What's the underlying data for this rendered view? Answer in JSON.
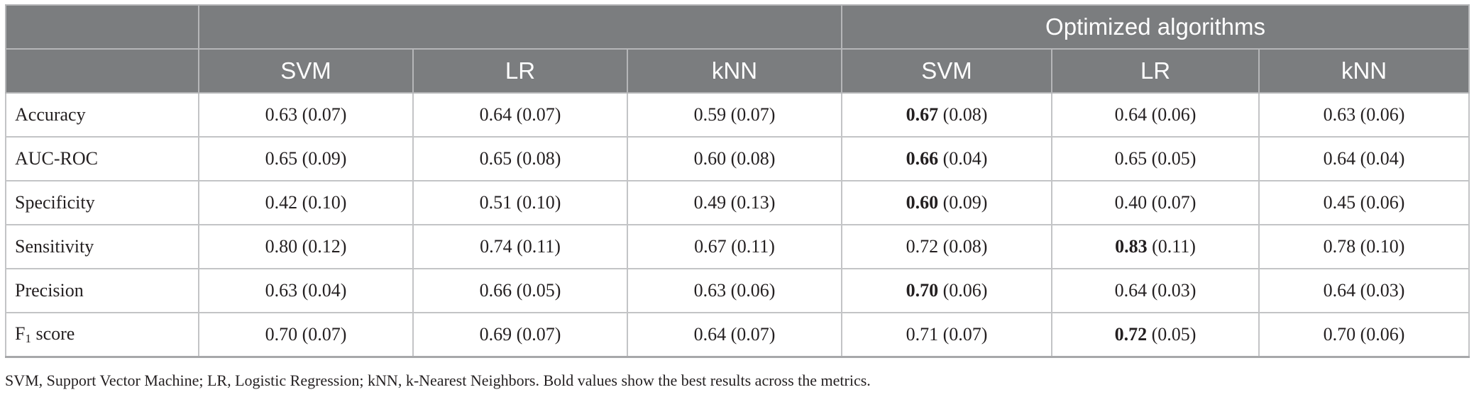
{
  "table": {
    "group_headers": [
      "",
      "",
      "Optimized algorithms"
    ],
    "column_headers": [
      "",
      "SVM",
      "LR",
      "kNN",
      "SVM",
      "LR",
      "kNN"
    ],
    "rows": [
      {
        "metric": "Accuracy",
        "metric_sub": "",
        "metric_suffix": "",
        "cells": [
          {
            "best": "",
            "value": "0.63 (0.07)"
          },
          {
            "best": "",
            "value": "0.64 (0.07)"
          },
          {
            "best": "",
            "value": "0.59 (0.07)"
          },
          {
            "best": "0.67",
            "value": " (0.08)"
          },
          {
            "best": "",
            "value": "0.64 (0.06)"
          },
          {
            "best": "",
            "value": "0.63 (0.06)"
          }
        ]
      },
      {
        "metric": "AUC-ROC",
        "metric_sub": "",
        "metric_suffix": "",
        "cells": [
          {
            "best": "",
            "value": "0.65 (0.09)"
          },
          {
            "best": "",
            "value": "0.65 (0.08)"
          },
          {
            "best": "",
            "value": "0.60 (0.08)"
          },
          {
            "best": "0.66",
            "value": " (0.04)"
          },
          {
            "best": "",
            "value": "0.65 (0.05)"
          },
          {
            "best": "",
            "value": "0.64 (0.04)"
          }
        ]
      },
      {
        "metric": "Specificity",
        "metric_sub": "",
        "metric_suffix": "",
        "cells": [
          {
            "best": "",
            "value": "0.42 (0.10)"
          },
          {
            "best": "",
            "value": "0.51 (0.10)"
          },
          {
            "best": "",
            "value": "0.49 (0.13)"
          },
          {
            "best": "0.60",
            "value": " (0.09)"
          },
          {
            "best": "",
            "value": "0.40 (0.07)"
          },
          {
            "best": "",
            "value": "0.45 (0.06)"
          }
        ]
      },
      {
        "metric": "Sensitivity",
        "metric_sub": "",
        "metric_suffix": "",
        "cells": [
          {
            "best": "",
            "value": "0.80 (0.12)"
          },
          {
            "best": "",
            "value": "0.74 (0.11)"
          },
          {
            "best": "",
            "value": "0.67 (0.11)"
          },
          {
            "best": "",
            "value": "0.72 (0.08)"
          },
          {
            "best": "0.83",
            "value": " (0.11)"
          },
          {
            "best": "",
            "value": "0.78 (0.10)"
          }
        ]
      },
      {
        "metric": "Precision",
        "metric_sub": "",
        "metric_suffix": "",
        "cells": [
          {
            "best": "",
            "value": "0.63 (0.04)"
          },
          {
            "best": "",
            "value": "0.66 (0.05)"
          },
          {
            "best": "",
            "value": "0.63 (0.06)"
          },
          {
            "best": "0.70",
            "value": " (0.06)"
          },
          {
            "best": "",
            "value": "0.64 (0.03)"
          },
          {
            "best": "",
            "value": "0.64 (0.03)"
          }
        ]
      },
      {
        "metric": "F",
        "metric_sub": "1",
        "metric_suffix": " score",
        "cells": [
          {
            "best": "",
            "value": "0.70 (0.07)"
          },
          {
            "best": "",
            "value": "0.69 (0.07)"
          },
          {
            "best": "",
            "value": "0.64 (0.07)"
          },
          {
            "best": "",
            "value": "0.71 (0.07)"
          },
          {
            "best": "0.72",
            "value": " (0.05)"
          },
          {
            "best": "",
            "value": "0.70 (0.06)"
          }
        ]
      }
    ]
  },
  "footnote": "SVM, Support Vector Machine; LR, Logistic Regression; kNN, k-Nearest Neighbors. Bold values show the best results across the metrics.",
  "colors": {
    "header_bg": "#7b7d7f",
    "header_text": "#ffffff",
    "grid": "#c3c4c6",
    "body_text": "#231f20"
  }
}
